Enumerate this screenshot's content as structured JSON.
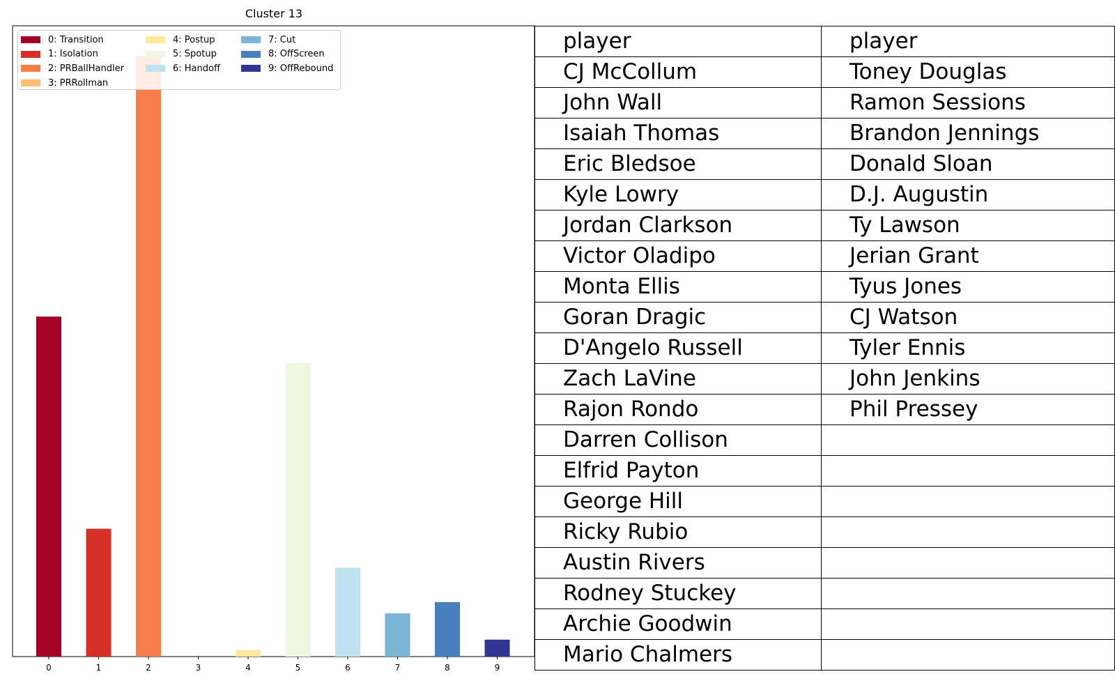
{
  "chart_data": {
    "type": "bar",
    "title": "Cluster 13",
    "xlabel": "",
    "ylabel": "",
    "categories": [
      "0",
      "1",
      "2",
      "3",
      "4",
      "5",
      "6",
      "7",
      "8",
      "9"
    ],
    "values": [
      0.2264,
      0.0851,
      0.4,
      0.0,
      0.0043,
      0.1954,
      0.0591,
      0.0288,
      0.0363,
      0.0113
    ],
    "ylim": [
      0,
      0.42
    ],
    "bar_colors": [
      "#a50026",
      "#d73027",
      "#f46d43",
      "#fdae61",
      "#fee090",
      "#e0f3f8",
      "#abd9e9",
      "#74add1",
      "#4575b4",
      "#313695"
    ],
    "bar_colors_drawn": [
      "#a50026",
      "#d73027",
      "#f67c4a",
      "#fdbe70",
      "#fee99d",
      "#eef7e1",
      "#bfe3ee",
      "#7db5d6",
      "#4a7fbd",
      "#313695"
    ],
    "legend": {
      "placement": "top-left",
      "entries": [
        "0: Transition",
        "1: Isolation",
        "2: PRBallHandler",
        "3: PRRollman",
        "4: Postup",
        "5: Spotup",
        "6: Handoff",
        "7: Cut",
        "8: OffScreen",
        "9: OffRebound"
      ]
    },
    "grid": false,
    "y_ticks_visible": false
  },
  "table": {
    "header": [
      "player",
      "player"
    ],
    "rows": [
      [
        "CJ McCollum",
        "Toney Douglas"
      ],
      [
        "John Wall",
        "Ramon Sessions"
      ],
      [
        "Isaiah Thomas",
        "Brandon Jennings"
      ],
      [
        "Eric Bledsoe",
        "Donald Sloan"
      ],
      [
        "Kyle Lowry",
        "D.J. Augustin"
      ],
      [
        "Jordan Clarkson",
        "Ty Lawson"
      ],
      [
        "Victor Oladipo",
        "Jerian Grant"
      ],
      [
        "Monta Ellis",
        "Tyus Jones"
      ],
      [
        "Goran Dragic",
        "CJ Watson"
      ],
      [
        "D'Angelo Russell",
        "Tyler Ennis"
      ],
      [
        "Zach LaVine",
        "John Jenkins"
      ],
      [
        "Rajon Rondo",
        "Phil Pressey"
      ],
      [
        "Darren Collison",
        ""
      ],
      [
        "Elfrid Payton",
        ""
      ],
      [
        "George Hill",
        ""
      ],
      [
        "Ricky Rubio",
        ""
      ],
      [
        "Austin Rivers",
        ""
      ],
      [
        "Rodney Stuckey",
        ""
      ],
      [
        "Archie Goodwin",
        ""
      ],
      [
        "Mario Chalmers",
        ""
      ]
    ]
  }
}
